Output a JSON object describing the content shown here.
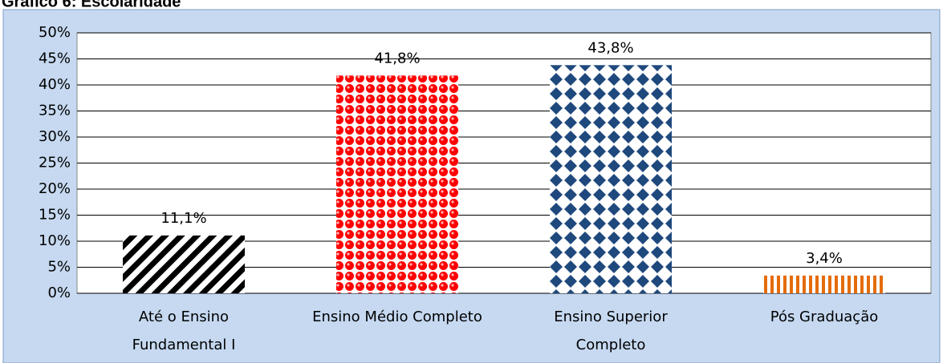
{
  "chart_data": {
    "type": "bar",
    "title": "Gráfico 6: Escolaridade",
    "categories": [
      "Até o Ensino\nFundamental I",
      "Ensino Médio Completo",
      "Ensino Superior\nCompleto",
      "Pós Graduação"
    ],
    "values": [
      11.1,
      41.8,
      43.8,
      3.4
    ],
    "value_labels": [
      "11,1%",
      "41,8%",
      "43,8%",
      "3,4%"
    ],
    "colors": [
      "#000000",
      "#ff0000",
      "#1f497d",
      "#e46c0a"
    ],
    "ylim": [
      0,
      50
    ],
    "yticks": [
      {
        "value": 0,
        "label": "0%"
      },
      {
        "value": 5,
        "label": "5%"
      },
      {
        "value": 10,
        "label": "10%"
      },
      {
        "value": 15,
        "label": "15%"
      },
      {
        "value": 20,
        "label": "20%"
      },
      {
        "value": 25,
        "label": "25%"
      },
      {
        "value": 30,
        "label": "30%"
      },
      {
        "value": 35,
        "label": "35%"
      },
      {
        "value": 40,
        "label": "40%"
      },
      {
        "value": 45,
        "label": "45%"
      },
      {
        "value": 50,
        "label": "50%"
      }
    ],
    "grid": true
  }
}
